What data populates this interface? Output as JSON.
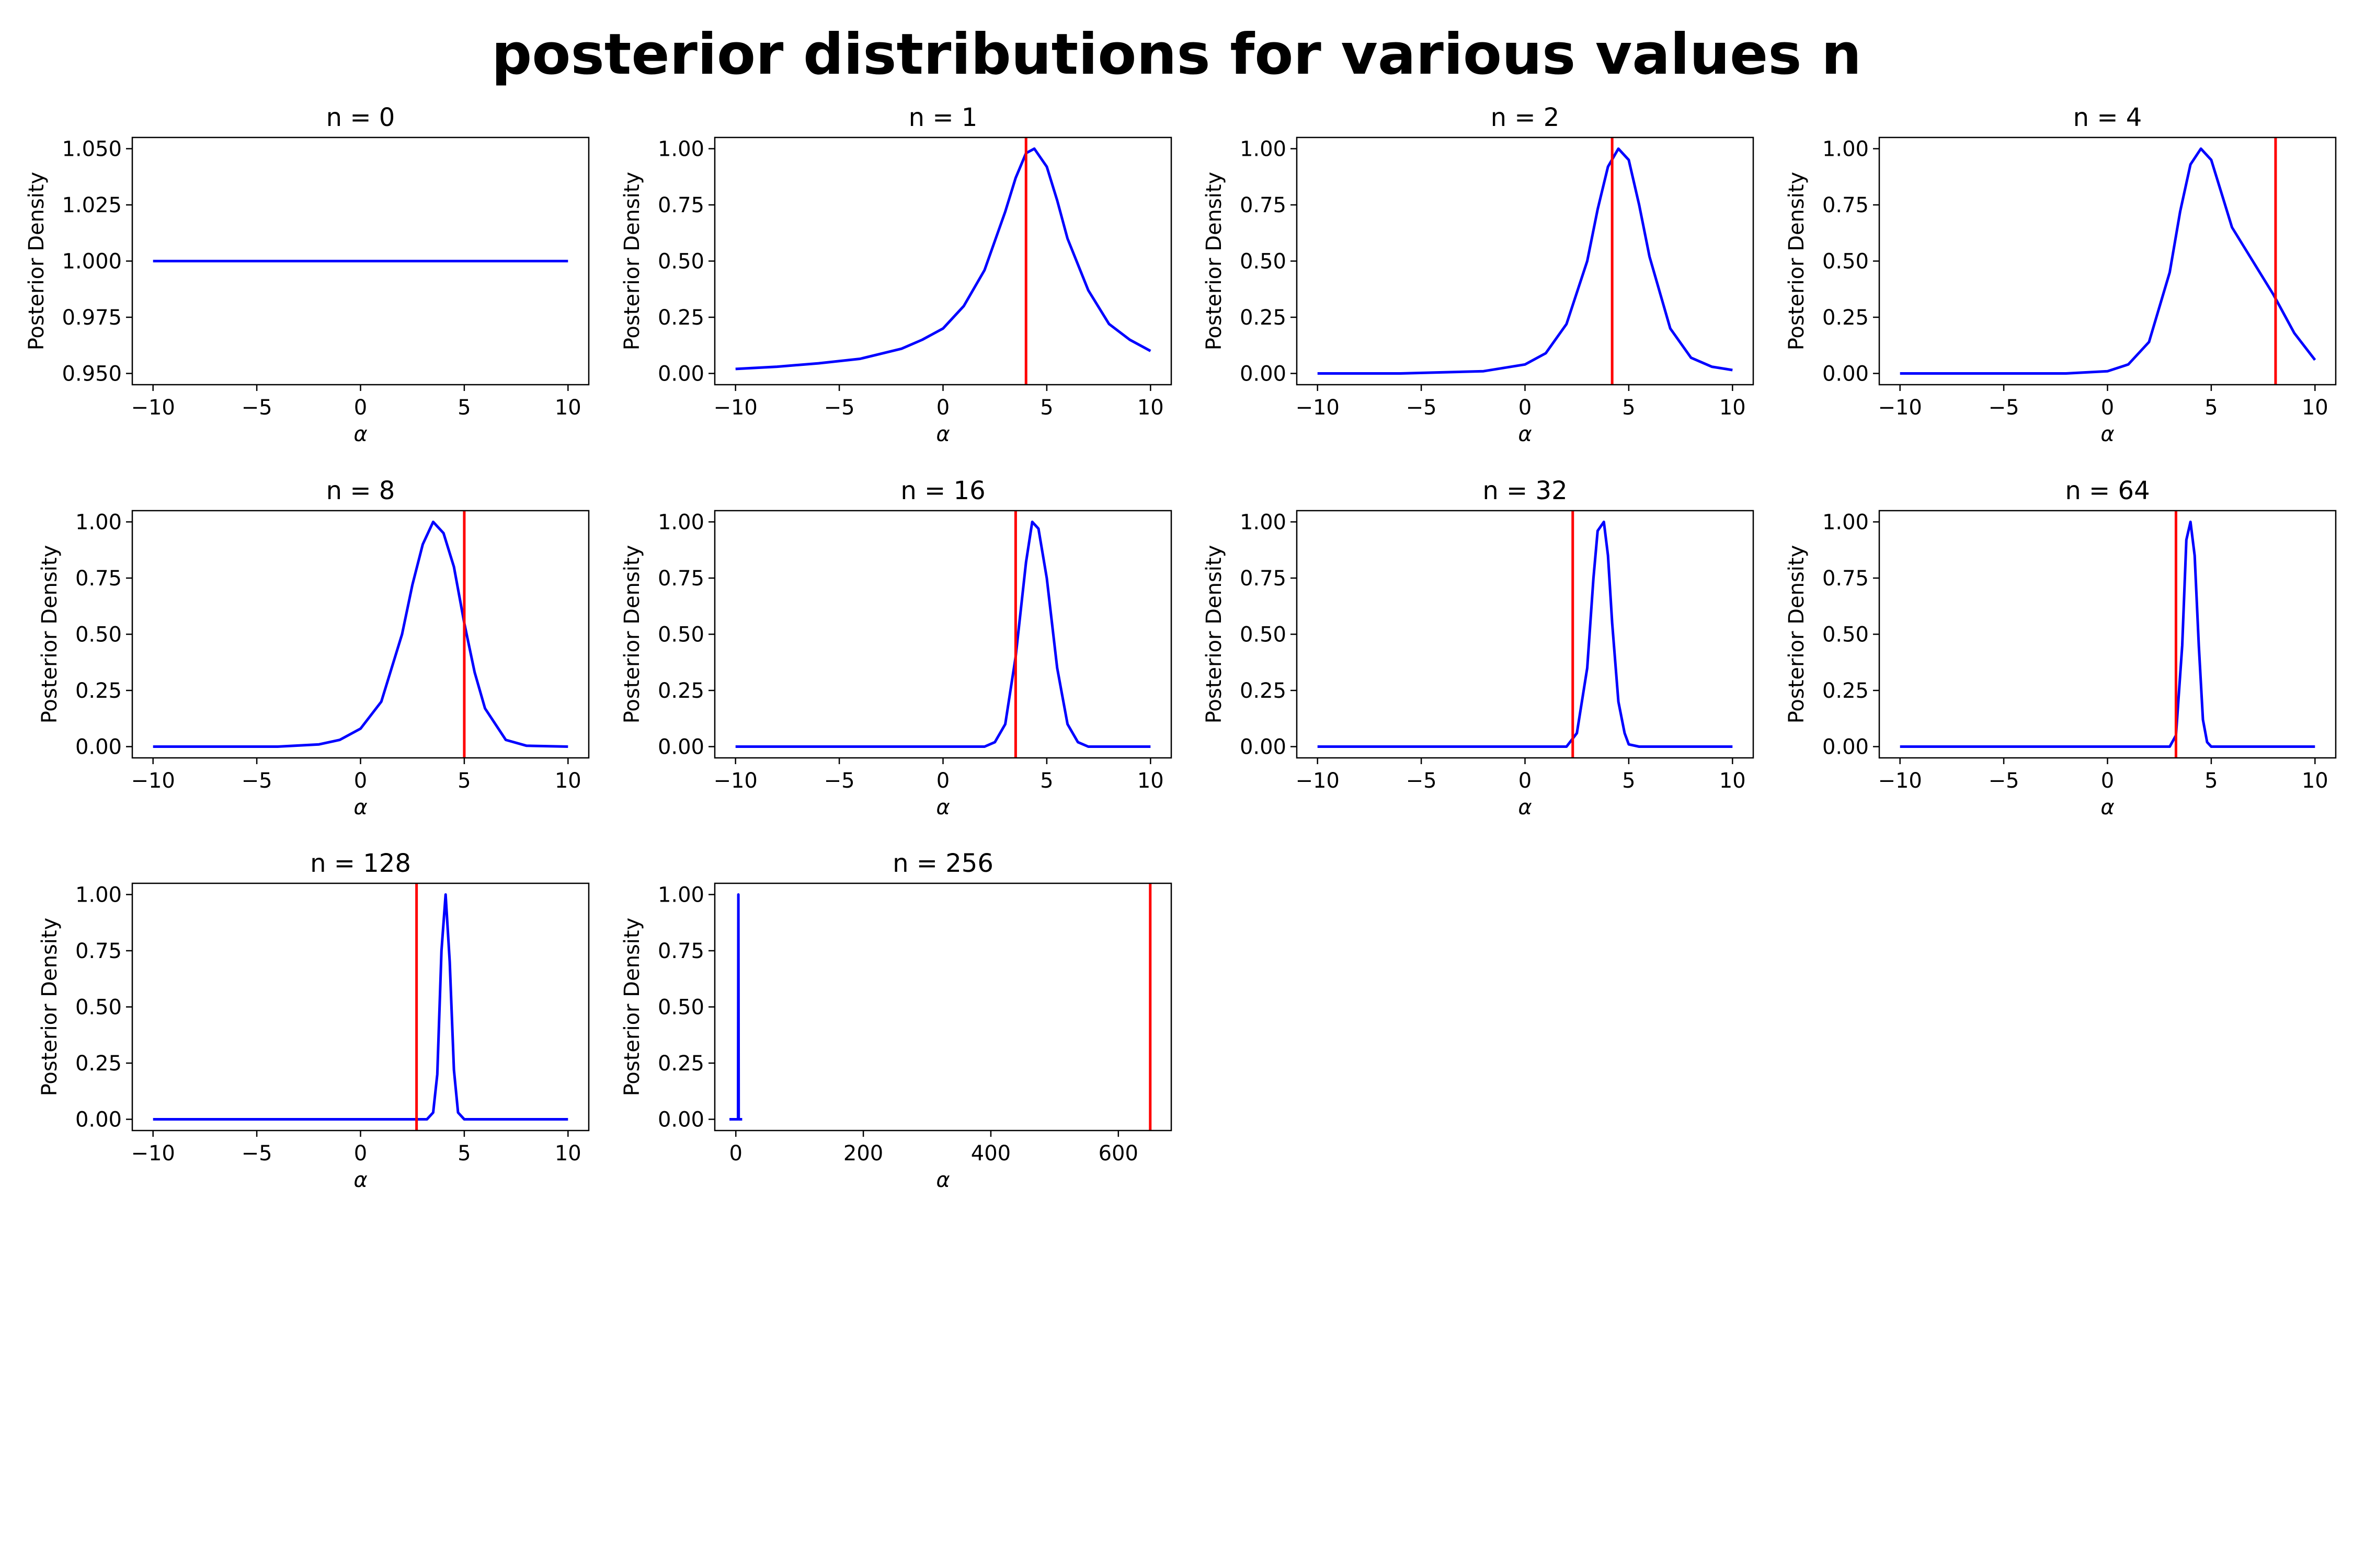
{
  "figure_title": "posterior distributions for various values n",
  "colors": {
    "posterior": "#0000ff",
    "marker": "#ff0000",
    "axes": "#000000"
  },
  "chart_data": [
    {
      "type": "line",
      "title": "n = 0",
      "xlabel": "α",
      "ylabel": "Posterior Density",
      "xlim": [
        -11,
        11
      ],
      "ylim": [
        0.945,
        1.055
      ],
      "xticks": [
        -10,
        -5,
        0,
        5,
        10
      ],
      "xtick_labels": [
        "−10",
        "−5",
        "0",
        "5",
        "10"
      ],
      "yticks": [
        0.95,
        0.975,
        1.0,
        1.025,
        1.05
      ],
      "ytick_labels": [
        "0.950",
        "0.975",
        "1.000",
        "1.025",
        "1.050"
      ],
      "series": [
        {
          "color": "#0000ff",
          "x": [
            -10,
            10
          ],
          "y": [
            1.0,
            1.0
          ]
        }
      ],
      "vline": null
    },
    {
      "type": "line",
      "title": "n = 1",
      "xlabel": "α",
      "ylabel": "Posterior Density",
      "xlim": [
        -11,
        11
      ],
      "ylim": [
        -0.05,
        1.05
      ],
      "xticks": [
        -10,
        -5,
        0,
        5,
        10
      ],
      "xtick_labels": [
        "−10",
        "−5",
        "0",
        "5",
        "10"
      ],
      "yticks": [
        0,
        0.25,
        0.5,
        0.75,
        1.0
      ],
      "ytick_labels": [
        "0.00",
        "0.25",
        "0.50",
        "0.75",
        "1.00"
      ],
      "series": [
        {
          "color": "#0000ff",
          "x": [
            -10,
            -8,
            -6,
            -4,
            -2,
            -1,
            0,
            1,
            2,
            3,
            3.5,
            4,
            4.4,
            5,
            5.5,
            6,
            7,
            8,
            9,
            10
          ],
          "y": [
            0.02,
            0.03,
            0.045,
            0.065,
            0.11,
            0.15,
            0.2,
            0.3,
            0.46,
            0.72,
            0.87,
            0.98,
            1.0,
            0.92,
            0.77,
            0.6,
            0.37,
            0.22,
            0.15,
            0.1
          ]
        }
      ],
      "vline": 4.0
    },
    {
      "type": "line",
      "title": "n = 2",
      "xlabel": "α",
      "ylabel": "Posterior Density",
      "xlim": [
        -11,
        11
      ],
      "ylim": [
        -0.05,
        1.05
      ],
      "xticks": [
        -10,
        -5,
        0,
        5,
        10
      ],
      "xtick_labels": [
        "−10",
        "−5",
        "0",
        "5",
        "10"
      ],
      "yticks": [
        0,
        0.25,
        0.5,
        0.75,
        1.0
      ],
      "ytick_labels": [
        "0.00",
        "0.25",
        "0.50",
        "0.75",
        "1.00"
      ],
      "series": [
        {
          "color": "#0000ff",
          "x": [
            -10,
            -6,
            -2,
            0,
            1,
            2,
            3,
            3.5,
            4,
            4.5,
            5,
            5.5,
            6,
            7,
            8,
            9,
            10
          ],
          "y": [
            0.0,
            0.0,
            0.01,
            0.04,
            0.09,
            0.22,
            0.5,
            0.73,
            0.92,
            1.0,
            0.95,
            0.75,
            0.52,
            0.2,
            0.07,
            0.03,
            0.015
          ]
        }
      ],
      "vline": 4.2
    },
    {
      "type": "line",
      "title": "n = 4",
      "xlabel": "α",
      "ylabel": "Posterior Density",
      "xlim": [
        -11,
        11
      ],
      "ylim": [
        -0.05,
        1.05
      ],
      "xticks": [
        -10,
        -5,
        0,
        5,
        10
      ],
      "xtick_labels": [
        "−10",
        "−5",
        "0",
        "5",
        "10"
      ],
      "yticks": [
        0,
        0.25,
        0.5,
        0.75,
        1.0
      ],
      "ytick_labels": [
        "0.00",
        "0.25",
        "0.50",
        "0.75",
        "1.00"
      ],
      "series": [
        {
          "color": "#0000ff",
          "x": [
            -10,
            -2,
            0,
            1,
            2,
            3,
            3.5,
            4,
            4.5,
            5,
            5.5,
            6,
            7,
            8,
            9,
            10
          ],
          "y": [
            0.0,
            0.0,
            0.01,
            0.04,
            0.14,
            0.45,
            0.72,
            0.93,
            1.0,
            0.95,
            0.8,
            0.65,
            0.5,
            0.35,
            0.18,
            0.06
          ]
        }
      ],
      "vline": 8.1
    },
    {
      "type": "line",
      "title": "n = 8",
      "xlabel": "α",
      "ylabel": "Posterior Density",
      "xlim": [
        -11,
        11
      ],
      "ylim": [
        -0.05,
        1.05
      ],
      "xticks": [
        -10,
        -5,
        0,
        5,
        10
      ],
      "xtick_labels": [
        "−10",
        "−5",
        "0",
        "5",
        "10"
      ],
      "yticks": [
        0,
        0.25,
        0.5,
        0.75,
        1.0
      ],
      "ytick_labels": [
        "0.00",
        "0.25",
        "0.50",
        "0.75",
        "1.00"
      ],
      "series": [
        {
          "color": "#0000ff",
          "x": [
            -10,
            -4,
            -2,
            -1,
            0,
            1,
            2,
            2.5,
            3,
            3.5,
            4,
            4.5,
            5,
            5.5,
            6,
            7,
            8,
            10
          ],
          "y": [
            0.0,
            0.0,
            0.01,
            0.03,
            0.08,
            0.2,
            0.5,
            0.72,
            0.9,
            1.0,
            0.95,
            0.8,
            0.55,
            0.33,
            0.17,
            0.03,
            0.004,
            0.0
          ]
        }
      ],
      "vline": 5.0
    },
    {
      "type": "line",
      "title": "n = 16",
      "xlabel": "α",
      "ylabel": "Posterior Density",
      "xlim": [
        -11,
        11
      ],
      "ylim": [
        -0.05,
        1.05
      ],
      "xticks": [
        -10,
        -5,
        0,
        5,
        10
      ],
      "xtick_labels": [
        "−10",
        "−5",
        "0",
        "5",
        "10"
      ],
      "yticks": [
        0,
        0.25,
        0.5,
        0.75,
        1.0
      ],
      "ytick_labels": [
        "0.00",
        "0.25",
        "0.50",
        "0.75",
        "1.00"
      ],
      "series": [
        {
          "color": "#0000ff",
          "x": [
            -10,
            2,
            2.5,
            3,
            3.5,
            4,
            4.3,
            4.6,
            5,
            5.5,
            6,
            6.5,
            7,
            10
          ],
          "y": [
            0.0,
            0.0,
            0.02,
            0.1,
            0.4,
            0.82,
            1.0,
            0.97,
            0.75,
            0.35,
            0.1,
            0.02,
            0.0,
            0.0
          ]
        }
      ],
      "vline": 3.5
    },
    {
      "type": "line",
      "title": "n = 32",
      "xlabel": "α",
      "ylabel": "Posterior Density",
      "xlim": [
        -11,
        11
      ],
      "ylim": [
        -0.05,
        1.05
      ],
      "xticks": [
        -10,
        -5,
        0,
        5,
        10
      ],
      "xtick_labels": [
        "−10",
        "−5",
        "0",
        "5",
        "10"
      ],
      "yticks": [
        0,
        0.25,
        0.5,
        0.75,
        1.0
      ],
      "ytick_labels": [
        "0.00",
        "0.25",
        "0.50",
        "0.75",
        "1.00"
      ],
      "series": [
        {
          "color": "#0000ff",
          "x": [
            -10,
            2,
            2.5,
            3,
            3.3,
            3.5,
            3.8,
            4.0,
            4.2,
            4.5,
            4.8,
            5,
            5.5,
            10
          ],
          "y": [
            0.0,
            0.0,
            0.06,
            0.35,
            0.75,
            0.96,
            1.0,
            0.85,
            0.55,
            0.2,
            0.06,
            0.01,
            0.0,
            0.0
          ]
        }
      ],
      "vline": 2.3
    },
    {
      "type": "line",
      "title": "n = 64",
      "xlabel": "α",
      "ylabel": "Posterior Density",
      "xlim": [
        -11,
        11
      ],
      "ylim": [
        -0.05,
        1.05
      ],
      "xticks": [
        -10,
        -5,
        0,
        5,
        10
      ],
      "xtick_labels": [
        "−10",
        "−5",
        "0",
        "5",
        "10"
      ],
      "yticks": [
        0,
        0.25,
        0.5,
        0.75,
        1.0
      ],
      "ytick_labels": [
        "0.00",
        "0.25",
        "0.50",
        "0.75",
        "1.00"
      ],
      "series": [
        {
          "color": "#0000ff",
          "x": [
            -10,
            3,
            3.3,
            3.6,
            3.8,
            4.0,
            4.2,
            4.4,
            4.6,
            4.8,
            5.0,
            10
          ],
          "y": [
            0.0,
            0.0,
            0.05,
            0.45,
            0.92,
            1.0,
            0.85,
            0.45,
            0.12,
            0.02,
            0.0,
            0.0
          ]
        }
      ],
      "vline": 3.3
    },
    {
      "type": "line",
      "title": "n = 128",
      "xlabel": "α",
      "ylabel": "Posterior Density",
      "xlim": [
        -11,
        11
      ],
      "ylim": [
        -0.05,
        1.05
      ],
      "xticks": [
        -10,
        -5,
        0,
        5,
        10
      ],
      "xtick_labels": [
        "−10",
        "−5",
        "0",
        "5",
        "10"
      ],
      "yticks": [
        0,
        0.25,
        0.5,
        0.75,
        1.0
      ],
      "ytick_labels": [
        "0.00",
        "0.25",
        "0.50",
        "0.75",
        "1.00"
      ],
      "series": [
        {
          "color": "#0000ff",
          "x": [
            -10,
            3.2,
            3.5,
            3.7,
            3.9,
            4.1,
            4.3,
            4.5,
            4.7,
            5.0,
            10
          ],
          "y": [
            0.0,
            0.0,
            0.03,
            0.2,
            0.75,
            1.0,
            0.7,
            0.22,
            0.03,
            0.0,
            0.0
          ]
        }
      ],
      "vline": 2.7
    },
    {
      "type": "line",
      "title": "n = 256",
      "xlabel": "α",
      "ylabel": "Posterior Density",
      "xlim": [
        -33,
        683
      ],
      "ylim": [
        -0.05,
        1.05
      ],
      "xticks": [
        0,
        200,
        400,
        600
      ],
      "xtick_labels": [
        "0",
        "200",
        "400",
        "600"
      ],
      "yticks": [
        0,
        0.25,
        0.5,
        0.75,
        1.0
      ],
      "ytick_labels": [
        "0.00",
        "0.25",
        "0.50",
        "0.75",
        "1.00"
      ],
      "series": [
        {
          "color": "#0000ff",
          "x": [
            -10,
            3.5,
            4.0,
            4.5,
            10
          ],
          "y": [
            0.0,
            0.0,
            1.0,
            0.0,
            0.0
          ]
        }
      ],
      "vline": 650
    }
  ]
}
